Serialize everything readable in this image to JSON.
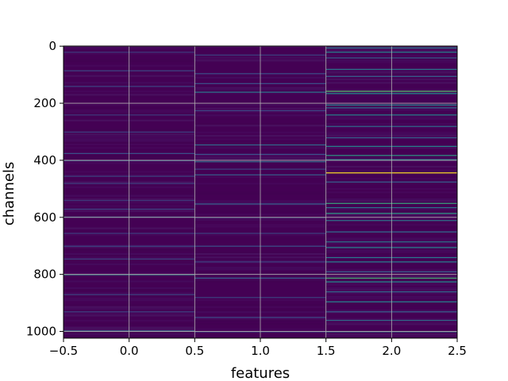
{
  "chart_data": {
    "type": "heatmap",
    "title": "",
    "xlabel": "features",
    "ylabel": "channels",
    "xlim": [
      -0.5,
      2.5
    ],
    "ylim": [
      1023.5,
      -0.5
    ],
    "x_ticks": [
      "−0.5",
      "0.0",
      "0.5",
      "1.0",
      "1.5",
      "2.0",
      "2.5"
    ],
    "x_tick_values": [
      -0.5,
      0.0,
      0.5,
      1.0,
      1.5,
      2.0,
      2.5
    ],
    "y_ticks": [
      "0",
      "200",
      "400",
      "600",
      "800",
      "1000"
    ],
    "y_tick_values": [
      0,
      200,
      400,
      600,
      800,
      1000
    ],
    "grid": true,
    "colormap": "viridis",
    "background_color": "#440154",
    "n_rows": 1024,
    "columns": [
      {
        "x": 0,
        "bright_channels": [
          {
            "channel": 20,
            "value": 0.18
          },
          {
            "channel": 85,
            "value": 0.22
          },
          {
            "channel": 140,
            "value": 0.2
          },
          {
            "channel": 240,
            "value": 0.18
          },
          {
            "channel": 300,
            "value": 0.2
          },
          {
            "channel": 375,
            "value": 0.25
          },
          {
            "channel": 400,
            "value": 0.3
          },
          {
            "channel": 455,
            "value": 0.2
          },
          {
            "channel": 480,
            "value": 0.18
          },
          {
            "channel": 540,
            "value": 0.18
          },
          {
            "channel": 570,
            "value": 0.2
          },
          {
            "channel": 598,
            "value": 0.3
          },
          {
            "channel": 655,
            "value": 0.18
          },
          {
            "channel": 700,
            "value": 0.22
          },
          {
            "channel": 745,
            "value": 0.2
          },
          {
            "channel": 800,
            "value": 0.5
          },
          {
            "channel": 870,
            "value": 0.2
          },
          {
            "channel": 930,
            "value": 0.2
          },
          {
            "channel": 997,
            "value": 0.35
          }
        ]
      },
      {
        "x": 1,
        "bright_channels": [
          {
            "channel": 30,
            "value": 0.2
          },
          {
            "channel": 95,
            "value": 0.22
          },
          {
            "channel": 130,
            "value": 0.25
          },
          {
            "channel": 160,
            "value": 0.4
          },
          {
            "channel": 225,
            "value": 0.22
          },
          {
            "channel": 345,
            "value": 0.35
          },
          {
            "channel": 378,
            "value": 0.25
          },
          {
            "channel": 404,
            "value": 0.35
          },
          {
            "channel": 430,
            "value": 0.2
          },
          {
            "channel": 450,
            "value": 0.3
          },
          {
            "channel": 552,
            "value": 0.3
          },
          {
            "channel": 600,
            "value": 0.22
          },
          {
            "channel": 655,
            "value": 0.2
          },
          {
            "channel": 700,
            "value": 0.25
          },
          {
            "channel": 755,
            "value": 0.2
          },
          {
            "channel": 812,
            "value": 0.3
          },
          {
            "channel": 880,
            "value": 0.2
          },
          {
            "channel": 950,
            "value": 0.22
          },
          {
            "channel": 1000,
            "value": 0.25
          }
        ]
      },
      {
        "x": 2,
        "bright_channels": [
          {
            "channel": 5,
            "value": 0.4
          },
          {
            "channel": 20,
            "value": 0.45
          },
          {
            "channel": 40,
            "value": 0.3
          },
          {
            "channel": 80,
            "value": 0.4
          },
          {
            "channel": 105,
            "value": 0.3
          },
          {
            "channel": 157,
            "value": 0.72
          },
          {
            "channel": 165,
            "value": 0.5
          },
          {
            "channel": 205,
            "value": 0.45
          },
          {
            "channel": 215,
            "value": 0.35
          },
          {
            "channel": 240,
            "value": 0.45
          },
          {
            "channel": 280,
            "value": 0.35
          },
          {
            "channel": 320,
            "value": 0.3
          },
          {
            "channel": 350,
            "value": 0.45
          },
          {
            "channel": 382,
            "value": 0.55
          },
          {
            "channel": 397,
            "value": 0.5
          },
          {
            "channel": 443,
            "value": 1.0
          },
          {
            "channel": 475,
            "value": 0.3
          },
          {
            "channel": 550,
            "value": 0.6
          },
          {
            "channel": 565,
            "value": 0.4
          },
          {
            "channel": 585,
            "value": 0.55
          },
          {
            "channel": 610,
            "value": 0.4
          },
          {
            "channel": 650,
            "value": 0.35
          },
          {
            "channel": 685,
            "value": 0.4
          },
          {
            "channel": 705,
            "value": 0.45
          },
          {
            "channel": 740,
            "value": 0.4
          },
          {
            "channel": 755,
            "value": 0.45
          },
          {
            "channel": 790,
            "value": 0.3
          },
          {
            "channel": 812,
            "value": 0.65
          },
          {
            "channel": 825,
            "value": 0.5
          },
          {
            "channel": 860,
            "value": 0.35
          },
          {
            "channel": 895,
            "value": 0.45
          },
          {
            "channel": 930,
            "value": 0.3
          },
          {
            "channel": 960,
            "value": 0.35
          },
          {
            "channel": 1000,
            "value": 0.4
          }
        ]
      }
    ]
  }
}
